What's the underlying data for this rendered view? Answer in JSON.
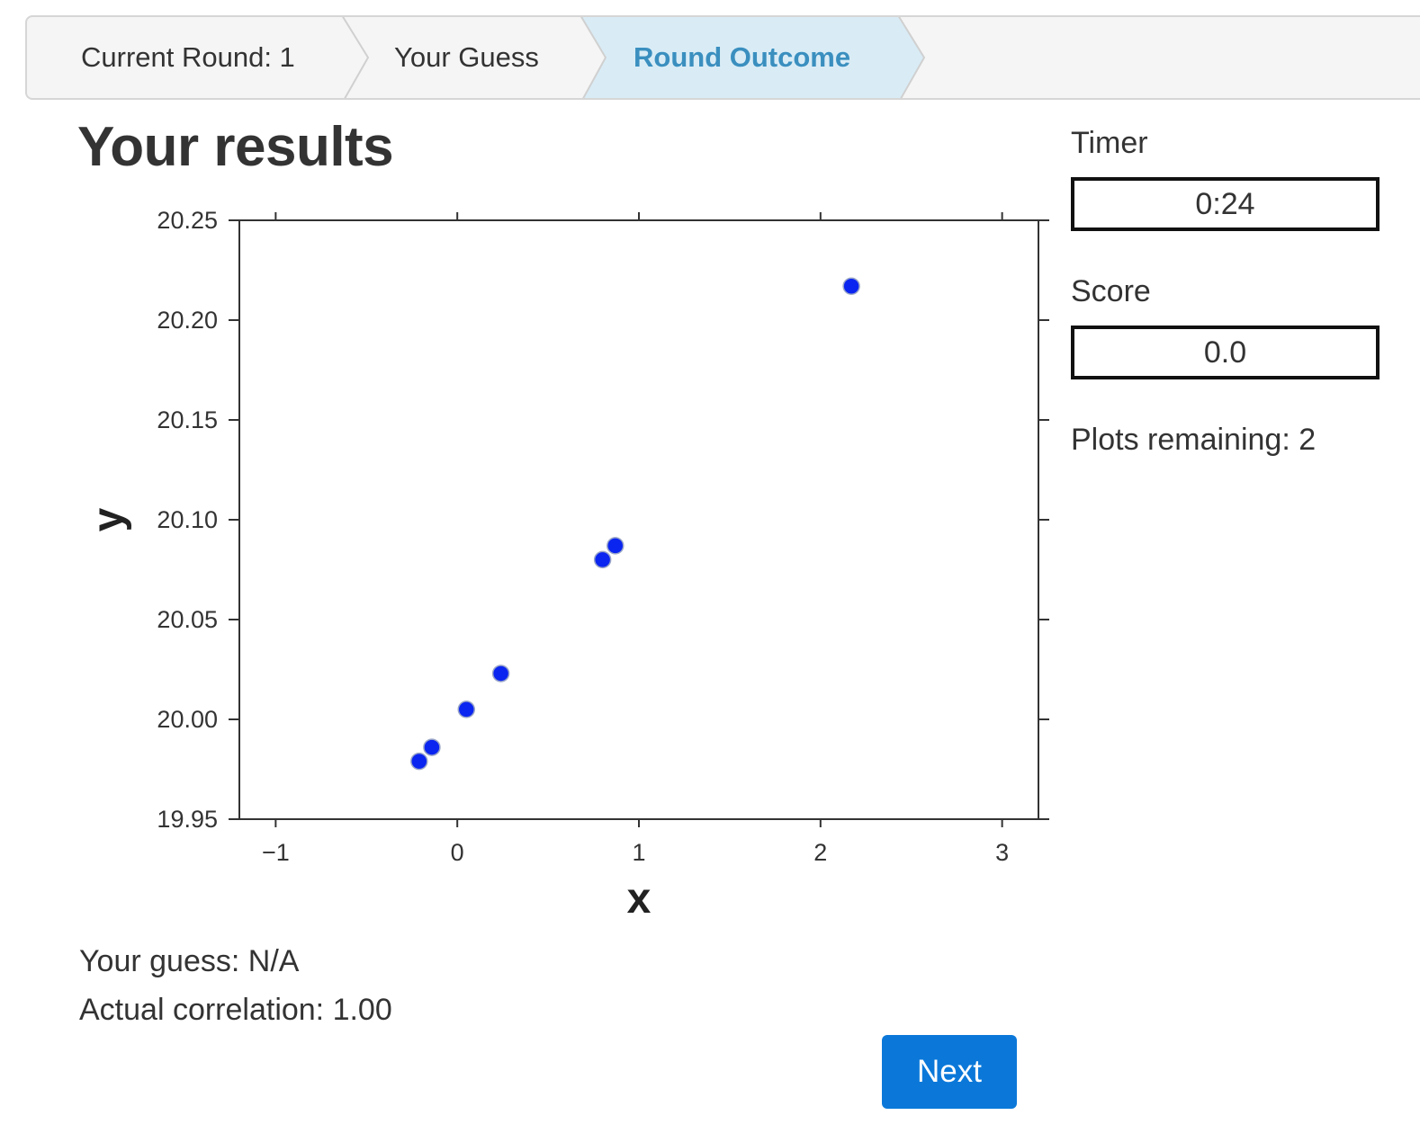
{
  "steps": {
    "current_round_label": "Current Round: 1",
    "your_guess_label": "Your Guess",
    "round_outcome_label": "Round Outcome",
    "active_color": "#d9ecf6"
  },
  "page_title": "Your results",
  "results": {
    "guess_text": "Your guess: N/A",
    "actual_text": "Actual correlation: 1.00"
  },
  "next_label": "Next",
  "sidebar": {
    "timer_label": "Timer",
    "timer_value": "0:24",
    "score_label": "Score",
    "score_value": "0.0",
    "plots_remaining_text": "Plots remaining: 2"
  },
  "chart_data": {
    "type": "scatter",
    "xlabel": "x",
    "ylabel": "y",
    "xlim": [
      -1.2,
      3.2
    ],
    "ylim": [
      19.95,
      20.25
    ],
    "xticks": [
      -1,
      0,
      1,
      2,
      3
    ],
    "xtick_labels": [
      "−1",
      "0",
      "1",
      "2",
      "3"
    ],
    "yticks": [
      19.95,
      20.0,
      20.05,
      20.1,
      20.15,
      20.2,
      20.25
    ],
    "ytick_labels": [
      "19.95",
      "20.00",
      "20.05",
      "20.10",
      "20.15",
      "20.20",
      "20.25"
    ],
    "point_color": "#0b25f0",
    "points": [
      {
        "x": -0.21,
        "y": 19.979
      },
      {
        "x": -0.14,
        "y": 19.986
      },
      {
        "x": 0.05,
        "y": 20.005
      },
      {
        "x": 0.24,
        "y": 20.023
      },
      {
        "x": 0.8,
        "y": 20.08
      },
      {
        "x": 0.87,
        "y": 20.087
      },
      {
        "x": 2.17,
        "y": 20.217
      }
    ],
    "grid": false
  }
}
